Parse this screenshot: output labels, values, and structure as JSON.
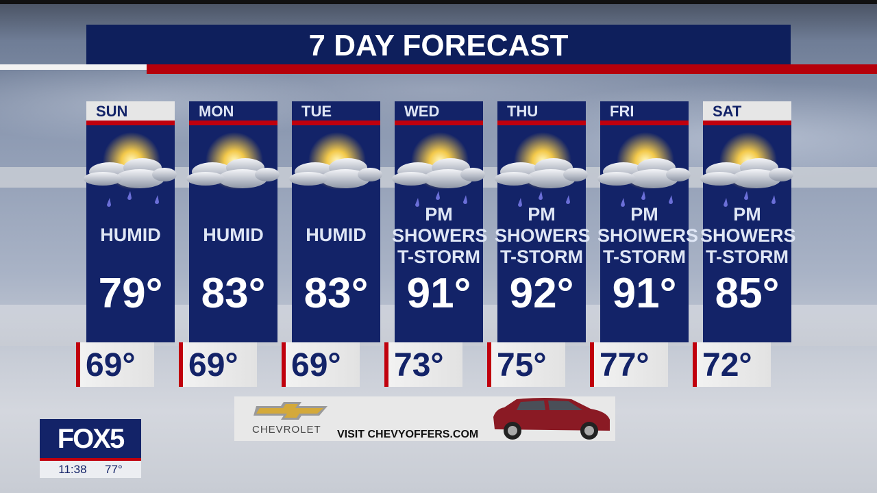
{
  "title": "7 DAY FORECAST",
  "days": [
    {
      "day": "SUN",
      "condition": [
        "HUMID"
      ],
      "high": "79°",
      "low": "69°",
      "icon": "partly-sunny-rain-icon",
      "header_style": "light"
    },
    {
      "day": "MON",
      "condition": [
        "HUMID"
      ],
      "high": "83°",
      "low": "69°",
      "icon": "partly-sunny-icon",
      "header_style": "dark"
    },
    {
      "day": "TUE",
      "condition": [
        "HUMID"
      ],
      "high": "83°",
      "low": "69°",
      "icon": "partly-sunny-icon",
      "header_style": "dark"
    },
    {
      "day": "WED",
      "condition": [
        "PM",
        "SHOWERS",
        "T-STORM"
      ],
      "high": "91°",
      "low": "73°",
      "icon": "partly-sunny-rain-icon",
      "header_style": "dark"
    },
    {
      "day": "THU",
      "condition": [
        "PM",
        "SHOWERS",
        "T-STORM"
      ],
      "high": "92°",
      "low": "75°",
      "icon": "partly-sunny-rain-icon",
      "header_style": "dark"
    },
    {
      "day": "FRI",
      "condition": [
        "PM",
        "SHOIWERS",
        "T-STORM"
      ],
      "high": "91°",
      "low": "77°",
      "icon": "partly-sunny-rain-icon",
      "header_style": "dark"
    },
    {
      "day": "SAT",
      "condition": [
        "PM",
        "SHOWERS",
        "T-STORM"
      ],
      "high": "85°",
      "low": "72°",
      "icon": "partly-sunny-rain-icon",
      "header_style": "light"
    }
  ],
  "ad": {
    "brand": "CHEVROLET",
    "text": "VISIT CHEVYOFFERS.COM"
  },
  "station": {
    "logo": "FOX5",
    "time": "11:38",
    "temp": "77°"
  },
  "colors": {
    "navy": "#132368",
    "red": "#c0000d"
  }
}
